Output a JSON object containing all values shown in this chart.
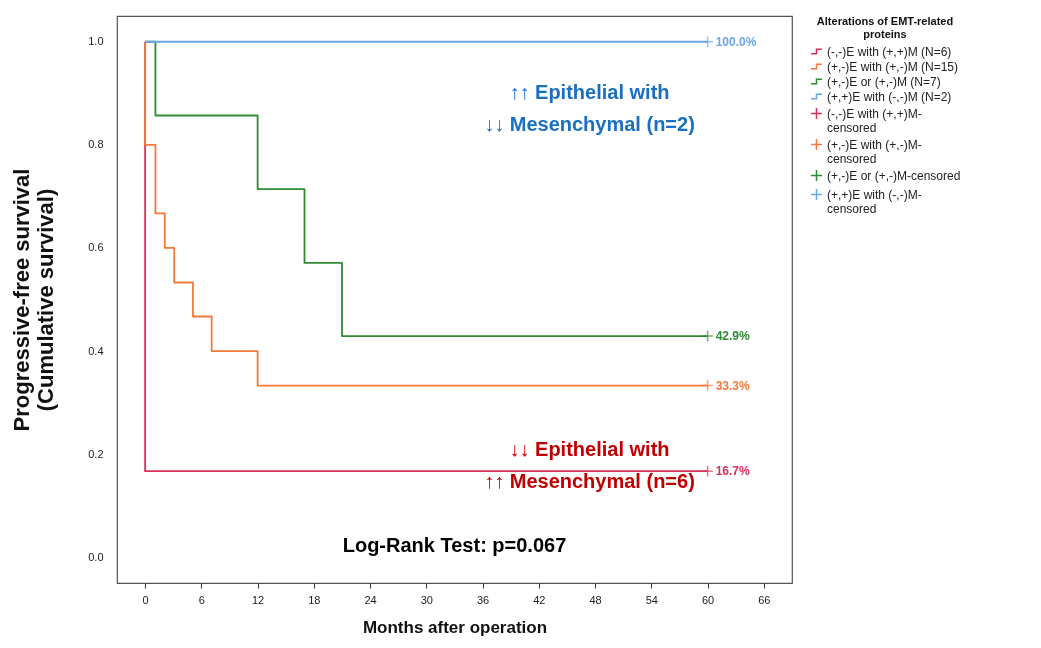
{
  "chart_data": {
    "type": "step",
    "xlabel": "Months after operation",
    "ylabel": "Progressive-free survival (Cumulative survival)",
    "legend_title": "Alterations of EMT-related proteins",
    "legend": "right",
    "grid": false,
    "xlim": [
      -3,
      69
    ],
    "xticks": [
      0,
      6,
      12,
      18,
      24,
      30,
      36,
      42,
      48,
      54,
      60,
      66
    ],
    "ylim": [
      -0.05,
      1.05
    ],
    "yticks": [
      {
        "value": 0,
        "label": "0.0"
      },
      {
        "value": 0.2,
        "label": "0.2"
      },
      {
        "value": 0.4,
        "label": "0.4"
      },
      {
        "value": 0.6,
        "label": "0.6"
      },
      {
        "value": 0.8,
        "label": "0.8"
      },
      {
        "value": 1,
        "label": "1.0"
      }
    ],
    "series": [
      {
        "name": "(-,-)E with (+,+)M (N=6)",
        "color": "#dc2f5a",
        "x": [
          0,
          0,
          60
        ],
        "values": [
          1,
          0.167,
          0.167
        ],
        "value_labels": [
          null,
          null,
          "16.7%"
        ]
      },
      {
        "name": "(+,-)E with (+,-)M (N=15)",
        "color": "#f4793a",
        "x": [
          0,
          0,
          1.1,
          2.1,
          3.1,
          5.1,
          7.1,
          12,
          60
        ],
        "values": [
          1,
          0.8,
          0.667,
          0.6,
          0.533,
          0.467,
          0.4,
          0.333,
          0.333
        ],
        "value_labels": [
          null,
          null,
          null,
          null,
          null,
          null,
          null,
          null,
          "33.3%"
        ]
      },
      {
        "name": "(+,-)E or (+,-)M (N=7)",
        "color": "#2e8b34",
        "x": [
          0,
          1.1,
          12,
          17,
          21,
          60
        ],
        "values": [
          1,
          0.857,
          0.714,
          0.571,
          0.429,
          0.429
        ],
        "value_labels": [
          null,
          null,
          null,
          null,
          null,
          "42.9%"
        ]
      },
      {
        "name": "(+,+)E with (-,-)M (N=2)",
        "color": "#6aa6e8",
        "x": [
          0,
          60
        ],
        "values": [
          1,
          1
        ],
        "value_labels": [
          null,
          "100.0%"
        ]
      },
      {
        "name": "(-,-)E with (+,+)M-censored",
        "type": "scatter",
        "marker": "cross",
        "color": "#dc2f5a",
        "x": [
          60
        ],
        "values": [
          0.167
        ]
      },
      {
        "name": "(+,-)E with (+,-)M-censored",
        "type": "scatter",
        "marker": "cross",
        "color": "#f4793a",
        "x": [
          60
        ],
        "values": [
          0.333
        ]
      },
      {
        "name": "(+,-)E or (+,-)M-censored",
        "type": "scatter",
        "marker": "cross",
        "color": "#2e8b34",
        "x": [
          60
        ],
        "values": [
          0.429
        ]
      },
      {
        "name": "(+,+)E with (-,-)M-censored",
        "type": "scatter",
        "marker": "cross",
        "color": "#6aa6e8",
        "x": [
          60
        ],
        "values": [
          1
        ]
      }
    ],
    "annotations": [
      "↑↑ Epithelial with\n↓↓ Mesenchymal (n=2)",
      "↓↓ Epithelial with\n↑↑ Mesenchymal (n=6)",
      "Log-Rank Test: p=0.067"
    ]
  }
}
